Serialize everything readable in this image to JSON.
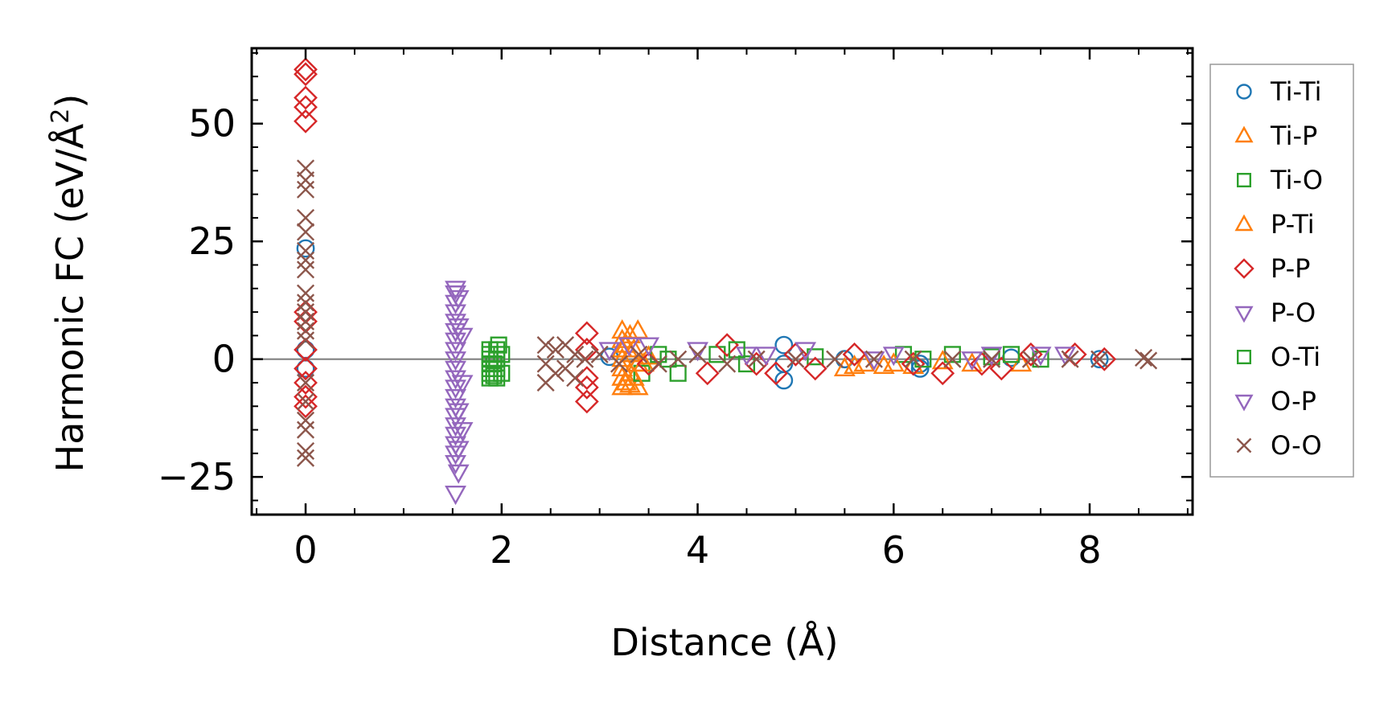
{
  "chart_data": {
    "type": "scatter",
    "xlabel": "Distance (Å)",
    "ylabel_main": "Harmonic FC (eV/Å",
    "ylabel_sup": "2",
    "ylabel_end": ")",
    "xlim": [
      -0.55,
      9.05
    ],
    "ylim": [
      -33,
      66
    ],
    "xticks": [
      0,
      2,
      4,
      6,
      8
    ],
    "xtick_labels": [
      "0",
      "2",
      "4",
      "6",
      "8"
    ],
    "yticks": [
      -25,
      0,
      25,
      50
    ],
    "ytick_labels": [
      "−25",
      "0",
      "25",
      "50"
    ],
    "grid": false,
    "zero_line": true,
    "legend_position": "right",
    "series": [
      {
        "name": "Ti-Ti",
        "marker": "circle",
        "color": "#1f77b4",
        "points": [
          [
            0,
            23.5
          ],
          [
            0,
            -2
          ],
          [
            0,
            2
          ],
          [
            4.88,
            3
          ],
          [
            4.88,
            -4.5
          ],
          [
            4.88,
            -1
          ],
          [
            6.27,
            -2
          ],
          [
            6.27,
            -1
          ],
          [
            3.1,
            0.5
          ],
          [
            5.5,
            0
          ],
          [
            7.2,
            0.3
          ],
          [
            8.1,
            0
          ]
        ]
      },
      {
        "name": "Ti-P",
        "marker": "triangle-up",
        "color": "#ff7f0e",
        "points": [
          [
            3.23,
            6
          ],
          [
            3.23,
            4
          ],
          [
            3.23,
            2
          ],
          [
            3.23,
            0
          ],
          [
            3.23,
            -2
          ],
          [
            3.23,
            -4
          ],
          [
            3.23,
            -6
          ],
          [
            3.31,
            5
          ],
          [
            3.31,
            1
          ],
          [
            3.31,
            -3
          ],
          [
            3.31,
            -5.5
          ],
          [
            3.39,
            6
          ],
          [
            3.39,
            -1
          ],
          [
            3.39,
            -6
          ],
          [
            3.5,
            0.5
          ],
          [
            5.5,
            -2
          ],
          [
            5.7,
            -1
          ],
          [
            5.9,
            -1.5
          ],
          [
            6.2,
            -1.5
          ],
          [
            6.8,
            -1
          ],
          [
            7.3,
            -1
          ]
        ]
      },
      {
        "name": "Ti-O",
        "marker": "square",
        "color": "#2ca02c",
        "points": [
          [
            1.88,
            2
          ],
          [
            1.88,
            1
          ],
          [
            1.88,
            0
          ],
          [
            1.88,
            -1
          ],
          [
            1.88,
            -2
          ],
          [
            1.88,
            -3
          ],
          [
            1.88,
            -4
          ],
          [
            1.95,
            2
          ],
          [
            1.95,
            0
          ],
          [
            1.95,
            -2
          ],
          [
            1.95,
            -4
          ],
          [
            2.0,
            1
          ],
          [
            2.0,
            -3
          ],
          [
            3.43,
            -3
          ],
          [
            3.6,
            1
          ],
          [
            3.8,
            -3
          ],
          [
            4.2,
            1
          ],
          [
            4.5,
            -1
          ],
          [
            5.2,
            0.5
          ],
          [
            6.1,
            1
          ],
          [
            6.6,
            1
          ],
          [
            7.0,
            0.5
          ],
          [
            7.5,
            0
          ]
        ]
      },
      {
        "name": "P-Ti",
        "marker": "triangle-up",
        "color": "#ff7f0e",
        "points": [
          [
            3.27,
            -5
          ],
          [
            3.27,
            3
          ],
          [
            3.35,
            -4
          ],
          [
            3.35,
            2
          ],
          [
            3.45,
            -1
          ],
          [
            5.6,
            -1.5
          ],
          [
            6.0,
            -1
          ],
          [
            6.5,
            -0.5
          ]
        ]
      },
      {
        "name": "P-P",
        "marker": "diamond",
        "color": "#d62728",
        "points": [
          [
            0,
            61.5
          ],
          [
            0,
            60.5
          ],
          [
            0,
            55.5
          ],
          [
            0,
            53.5
          ],
          [
            0,
            50.5
          ],
          [
            0,
            10
          ],
          [
            0,
            8
          ],
          [
            0,
            2
          ],
          [
            0,
            -2
          ],
          [
            0,
            -5
          ],
          [
            0,
            -8
          ],
          [
            0,
            -10
          ],
          [
            2.87,
            5.5
          ],
          [
            2.87,
            2
          ],
          [
            2.87,
            -4
          ],
          [
            2.87,
            -6
          ],
          [
            2.87,
            -9
          ],
          [
            3.5,
            -1
          ],
          [
            4.1,
            -3
          ],
          [
            4.3,
            3
          ],
          [
            4.6,
            -1
          ],
          [
            4.8,
            -3
          ],
          [
            5.0,
            1
          ],
          [
            5.2,
            -2
          ],
          [
            5.6,
            1
          ],
          [
            6.2,
            -1
          ],
          [
            6.5,
            -3
          ],
          [
            6.9,
            -1
          ],
          [
            7.1,
            -2
          ],
          [
            7.4,
            1
          ],
          [
            7.85,
            1
          ],
          [
            8.15,
            0
          ]
        ]
      },
      {
        "name": "P-O",
        "marker": "triangle-down",
        "color": "#9467bd",
        "points": [
          [
            1.53,
            15
          ],
          [
            1.53,
            14
          ],
          [
            1.53,
            12
          ],
          [
            1.53,
            10
          ],
          [
            1.53,
            8
          ],
          [
            1.53,
            6
          ],
          [
            1.53,
            4
          ],
          [
            1.53,
            2
          ],
          [
            1.53,
            0
          ],
          [
            1.53,
            -2
          ],
          [
            1.53,
            -4
          ],
          [
            1.53,
            -6
          ],
          [
            1.53,
            -8
          ],
          [
            1.53,
            -10
          ],
          [
            1.53,
            -12
          ],
          [
            1.53,
            -14
          ],
          [
            1.53,
            -16
          ],
          [
            1.53,
            -18
          ],
          [
            1.53,
            -20
          ],
          [
            1.53,
            -22
          ],
          [
            1.53,
            -28.5
          ],
          [
            1.6,
            5
          ],
          [
            1.6,
            -5
          ],
          [
            1.6,
            -15
          ],
          [
            3.1,
            2
          ],
          [
            3.5,
            3
          ],
          [
            4.0,
            2
          ],
          [
            4.5,
            1
          ],
          [
            5.1,
            2
          ],
          [
            6.0,
            1
          ],
          [
            6.8,
            0
          ],
          [
            7.5,
            1
          ],
          [
            7.75,
            1
          ]
        ]
      },
      {
        "name": "O-Ti",
        "marker": "square",
        "color": "#2ca02c",
        "points": [
          [
            1.92,
            -1
          ],
          [
            1.92,
            -3.5
          ],
          [
            1.97,
            3
          ],
          [
            3.7,
            0
          ],
          [
            4.4,
            2
          ],
          [
            6.3,
            0
          ],
          [
            7.2,
            1
          ]
        ]
      },
      {
        "name": "O-P",
        "marker": "triangle-down",
        "color": "#9467bd",
        "points": [
          [
            1.56,
            -11
          ],
          [
            1.56,
            -19
          ],
          [
            1.56,
            -24
          ],
          [
            1.56,
            7
          ],
          [
            1.56,
            13
          ],
          [
            3.3,
            3
          ],
          [
            4.7,
            1
          ],
          [
            5.8,
            0
          ],
          [
            7.0,
            1
          ]
        ]
      },
      {
        "name": "O-O",
        "marker": "x",
        "color": "#8c564b",
        "points": [
          [
            0,
            40.5
          ],
          [
            0,
            38
          ],
          [
            0,
            36
          ],
          [
            0,
            30
          ],
          [
            0,
            27
          ],
          [
            0,
            23
          ],
          [
            0,
            21
          ],
          [
            0,
            19
          ],
          [
            0,
            14
          ],
          [
            0,
            12
          ],
          [
            0,
            10
          ],
          [
            0,
            8
          ],
          [
            0,
            6
          ],
          [
            0,
            4
          ],
          [
            0,
            -5
          ],
          [
            0,
            -9
          ],
          [
            0,
            -13
          ],
          [
            0,
            -15
          ],
          [
            0,
            -19.5
          ],
          [
            0,
            -21
          ],
          [
            2.45,
            3
          ],
          [
            2.45,
            -1
          ],
          [
            2.45,
            -5
          ],
          [
            2.55,
            2
          ],
          [
            2.55,
            -3
          ],
          [
            2.65,
            3
          ],
          [
            2.65,
            -2
          ],
          [
            2.75,
            1
          ],
          [
            2.75,
            -4
          ],
          [
            2.85,
            0
          ],
          [
            3.0,
            1
          ],
          [
            3.2,
            -1
          ],
          [
            3.4,
            1
          ],
          [
            3.6,
            -1
          ],
          [
            3.8,
            0
          ],
          [
            4.0,
            1
          ],
          [
            4.3,
            -1
          ],
          [
            4.6,
            0
          ],
          [
            5.0,
            0
          ],
          [
            5.4,
            0
          ],
          [
            5.8,
            0
          ],
          [
            6.2,
            0
          ],
          [
            6.6,
            0
          ],
          [
            7.0,
            0
          ],
          [
            7.4,
            0
          ],
          [
            7.8,
            0
          ],
          [
            8.1,
            0
          ],
          [
            8.55,
            0.3
          ],
          [
            8.6,
            -0.3
          ]
        ]
      }
    ]
  }
}
